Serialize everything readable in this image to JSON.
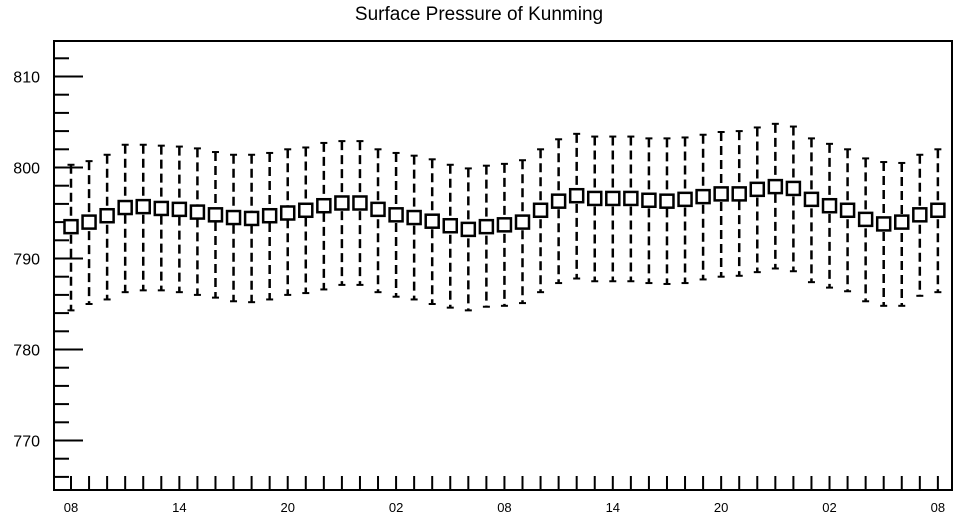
{
  "chart_data": {
    "type": "boxplot",
    "title": "Surface Pressure of Kunming",
    "xlabel": "",
    "ylabel": "",
    "ylim": [
      764,
      814
    ],
    "y_ticks": [
      770,
      780,
      790,
      800,
      810
    ],
    "x_tick_labels": [
      "08",
      "14",
      "20",
      "02",
      "08",
      "14",
      "20",
      "02",
      "08"
    ],
    "x_tick_label_every": 6,
    "grid": false,
    "series": [
      {
        "mean": [
          793.5,
          794.0,
          794.7,
          795.6,
          795.7,
          795.5,
          795.4,
          795.1,
          794.8,
          794.5,
          794.4,
          794.7,
          795.0,
          795.3,
          795.8,
          796.1,
          796.1,
          795.4,
          794.8,
          794.5,
          794.1,
          793.6,
          793.2,
          793.5,
          793.7,
          794.0,
          795.3,
          796.3,
          796.9,
          796.6,
          796.6,
          796.6,
          796.4,
          796.3,
          796.5,
          796.8,
          797.1,
          797.1,
          797.6,
          797.9,
          797.7,
          796.5,
          795.8,
          795.3,
          794.3,
          793.8,
          794.0,
          794.8,
          795.3
        ],
        "upper": [
          800.3,
          800.7,
          801.4,
          802.5,
          802.5,
          802.4,
          802.3,
          802.1,
          801.7,
          801.4,
          801.4,
          801.6,
          802.0,
          802.2,
          802.7,
          802.9,
          802.9,
          802.0,
          801.6,
          801.3,
          800.9,
          800.3,
          799.9,
          800.2,
          800.4,
          800.8,
          802.0,
          803.1,
          803.7,
          803.4,
          803.4,
          803.4,
          803.2,
          803.2,
          803.3,
          803.6,
          803.9,
          804.0,
          804.4,
          804.8,
          804.5,
          803.2,
          802.6,
          802.0,
          801.0,
          800.6,
          800.5,
          801.4,
          802.0
        ],
        "lower": [
          784.3,
          785.0,
          785.5,
          786.3,
          786.5,
          786.5,
          786.3,
          786.0,
          785.7,
          785.3,
          785.2,
          785.5,
          786.0,
          786.2,
          786.6,
          787.1,
          787.1,
          786.3,
          785.8,
          785.5,
          785.0,
          784.6,
          784.3,
          784.7,
          784.8,
          785.1,
          786.3,
          787.3,
          787.8,
          787.5,
          787.5,
          787.5,
          787.3,
          787.2,
          787.3,
          787.7,
          788.0,
          788.1,
          788.5,
          788.9,
          788.6,
          787.4,
          786.8,
          786.4,
          785.3,
          784.8,
          784.8,
          785.9,
          786.3
        ]
      }
    ]
  }
}
